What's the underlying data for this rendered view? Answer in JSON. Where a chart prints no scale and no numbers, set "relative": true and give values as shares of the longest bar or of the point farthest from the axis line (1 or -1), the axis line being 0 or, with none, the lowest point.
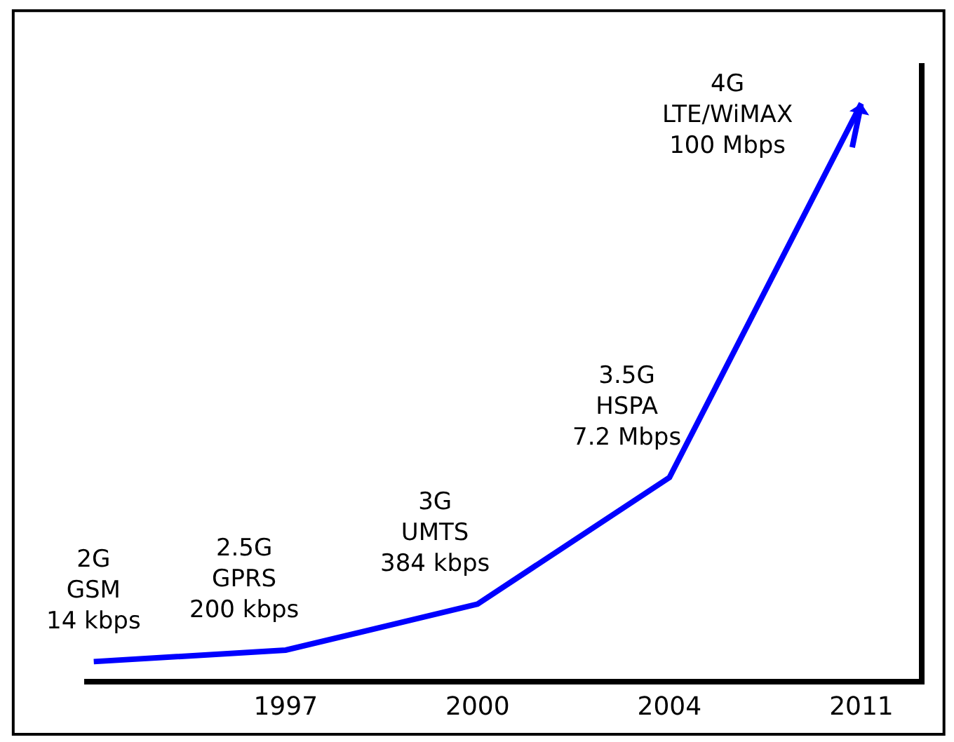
{
  "chart_data": {
    "type": "line",
    "relative": true,
    "categories": [
      null,
      "1997",
      "2000",
      "2004",
      "2011"
    ],
    "series": [
      {
        "color": "#0000ff",
        "values": [
          0.03,
          0.05,
          0.13,
          0.35,
          1
        ]
      }
    ],
    "annotations": [
      "2G\nGSM\n14 kbps",
      "2.5G\nGPRS\n200 kbps",
      "3G\nUMTS\n384 kbps",
      "3.5G\nHSPA\n7.2 Mbps",
      "4G\nLTE/WiMAX\n100 Mbps"
    ],
    "marker": "none",
    "line_style": "solid"
  }
}
